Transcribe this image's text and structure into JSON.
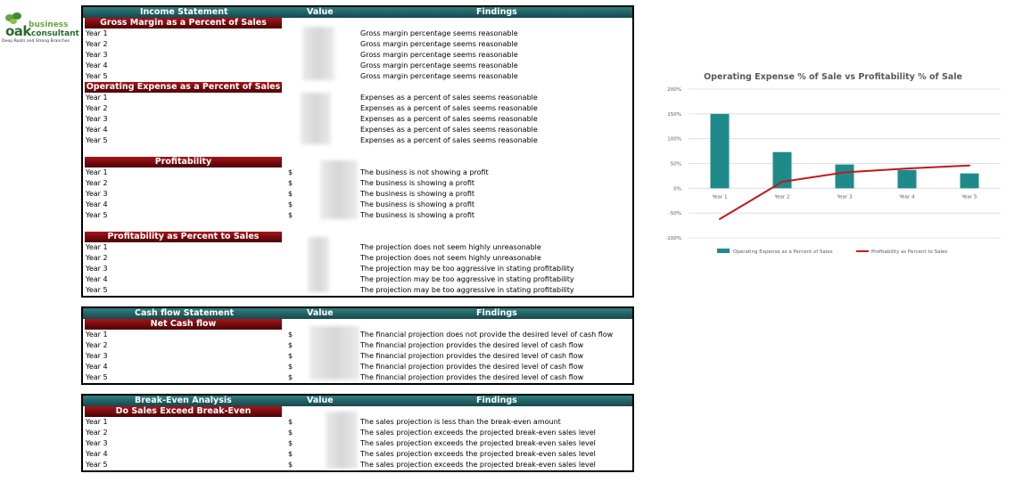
{
  "logo": {
    "mark": "oak",
    "word1": "business",
    "word2": "consultant",
    "tagline": "Deep Roots and Strong Branches"
  },
  "years": [
    "Year 1",
    "Year 2",
    "Year 3",
    "Year 4",
    "Year 5"
  ],
  "currency": "$",
  "income": {
    "header": {
      "title": "Income Statement",
      "value": "Value",
      "findings": "Findings"
    },
    "gross": {
      "title": "Gross Margin as a Percent of Sales",
      "findings": [
        "Gross margin percentage seems reasonable",
        "Gross margin percentage seems reasonable",
        "Gross margin percentage seems reasonable",
        "Gross margin percentage seems reasonable",
        "Gross margin percentage seems reasonable"
      ]
    },
    "opex": {
      "title": "Operating Expense as a Percent of Sales",
      "findings": [
        "Expenses as a percent of sales seems reasonable",
        "Expenses as a percent of sales seems reasonable",
        "Expenses as a percent of sales seems reasonable",
        "Expenses as a percent of sales seems reasonable",
        "Expenses as a percent of sales seems reasonable"
      ]
    },
    "profit": {
      "title": "Profitability",
      "findings": [
        "The business is not showing a profit",
        "The business is showing a profit",
        "The business is showing a profit",
        "The business is showing a profit",
        "The business is showing a profit"
      ]
    },
    "profit_pct": {
      "title": "Profitability as Percent to Sales",
      "findings": [
        "The projection does not seem highly unreasonable",
        "The projection does not seem highly unreasonable",
        "The projection may be too aggressive in stating profitability",
        "The projection may be too aggressive in stating profitability",
        "The projection may be too aggressive in stating profitability"
      ]
    }
  },
  "cashflow": {
    "header": {
      "title": "Cash flow Statement",
      "value": "Value",
      "findings": "Findings"
    },
    "net": {
      "title": "Net Cash flow",
      "findings": [
        "The financial projection does not provide the desired level of cash flow",
        "The financial projection provides the desired level of cash flow",
        "The financial projection provides the desired level of cash flow",
        "The financial projection provides the desired level of cash flow",
        "The financial projection provides the desired level of cash flow"
      ]
    }
  },
  "breakeven": {
    "header": {
      "title": "Break-Even Analysis",
      "value": "Value",
      "findings": "Findings"
    },
    "exceed": {
      "title": "Do Sales Exceed Break-Even",
      "findings": [
        "The sales projection is less than the break-even amount",
        "The sales projection exceeds the projected break-even sales level",
        "The sales projection exceeds the projected break-even sales level",
        "The sales projection exceeds the projected break-even sales level",
        "The sales projection exceeds the projected break-even sales level"
      ]
    }
  },
  "chart_data": {
    "type": "bar",
    "title": "Operating Expense % of Sale vs Profitability % of Sale",
    "categories": [
      "Year 1",
      "Year 2",
      "Year 3",
      "Year 4",
      "Year 5"
    ],
    "yticks": [
      "200%",
      "150%",
      "100%",
      "50%",
      "0%",
      "-50%",
      "-100%"
    ],
    "ylim": [
      -100,
      200
    ],
    "series": [
      {
        "name": "Operating Expense as a Percent of Sales",
        "kind": "bar",
        "color": "#1f8a8a",
        "values": [
          150,
          73,
          48,
          37,
          30
        ]
      },
      {
        "name": "Profitability as Percent to Sales",
        "kind": "line",
        "color": "#c0191c",
        "values": [
          -62,
          13,
          32,
          40,
          46
        ]
      }
    ],
    "legend": "bottom",
    "grid": true
  }
}
